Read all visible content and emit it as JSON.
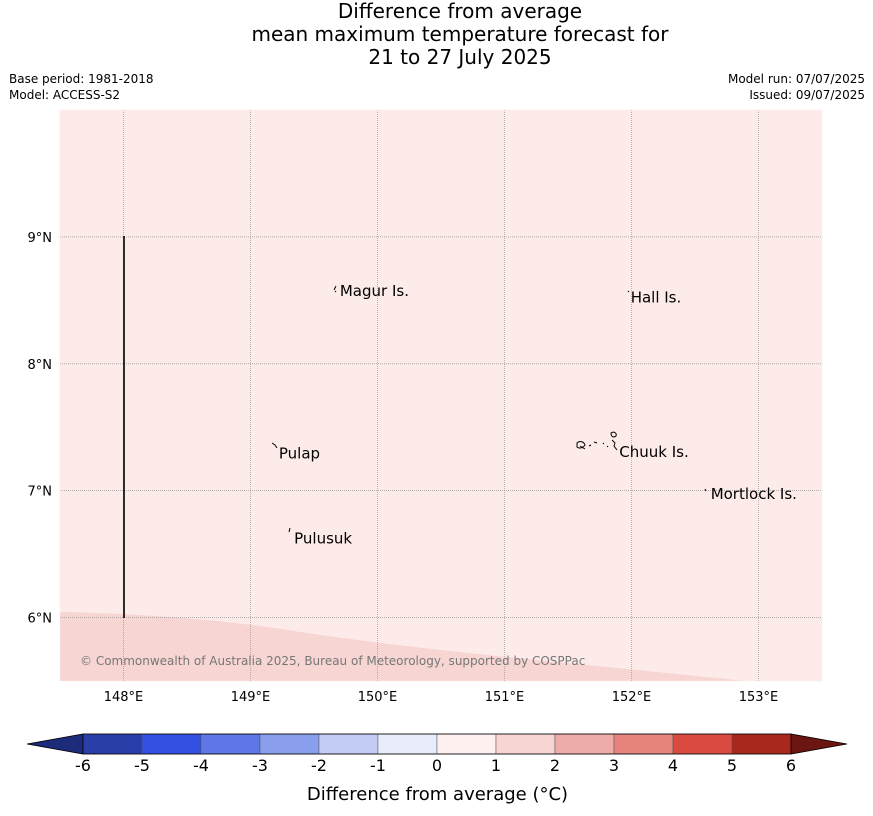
{
  "title": {
    "line1": "Difference from average",
    "line2": "mean maximum temperature forecast for",
    "line3": "21 to 27 July 2025"
  },
  "meta": {
    "base_period": "Base period: 1981-2018",
    "model": "Model: ACCESS-S2",
    "model_run": "Model run: 07/07/2025",
    "issued": "Issued: 09/07/2025"
  },
  "map": {
    "lon_range": [
      147.5,
      153.5
    ],
    "lat_range": [
      5.5,
      10.0
    ],
    "lon_ticks": [
      "148°E",
      "149°E",
      "150°E",
      "151°E",
      "152°E",
      "153°E"
    ],
    "lat_ticks": [
      "9°N",
      "8°N",
      "7°N",
      "6°N"
    ],
    "background_anomaly": "0 to 1",
    "lower_region_anomaly": "1 to 2",
    "places": [
      {
        "name": "Magur Is.",
        "lon": 149.68,
        "lat": 8.55
      },
      {
        "name": "Hall Is.",
        "lon": 151.97,
        "lat": 8.5
      },
      {
        "name": "Pulap",
        "lon": 149.2,
        "lat": 7.27
      },
      {
        "name": "Chuuk Is.",
        "lon": 151.88,
        "lat": 7.28
      },
      {
        "name": "Mortlock Is.",
        "lon": 152.6,
        "lat": 6.95
      },
      {
        "name": "Pulusuk",
        "lon": 149.32,
        "lat": 6.6
      }
    ],
    "copyright": "© Commonwealth of Australia 2025, Bureau of Meteorology, supported by COSPPac"
  },
  "colorbar": {
    "ticks": [
      "-6",
      "-5",
      "-4",
      "-3",
      "-2",
      "-1",
      "0",
      "1",
      "2",
      "3",
      "4",
      "5",
      "6"
    ],
    "colors": [
      "#2a3ea9",
      "#3350e2",
      "#5e76e6",
      "#8a9eee",
      "#c3ccf5",
      "#e9ecfb",
      "#fdf0ef",
      "#f6d5d2",
      "#eeaca8",
      "#e6837d",
      "#db4a40",
      "#a9281e"
    ],
    "under_color": "#1c2b7a",
    "over_color": "#6b1611",
    "label": "Difference from average (°C)"
  }
}
